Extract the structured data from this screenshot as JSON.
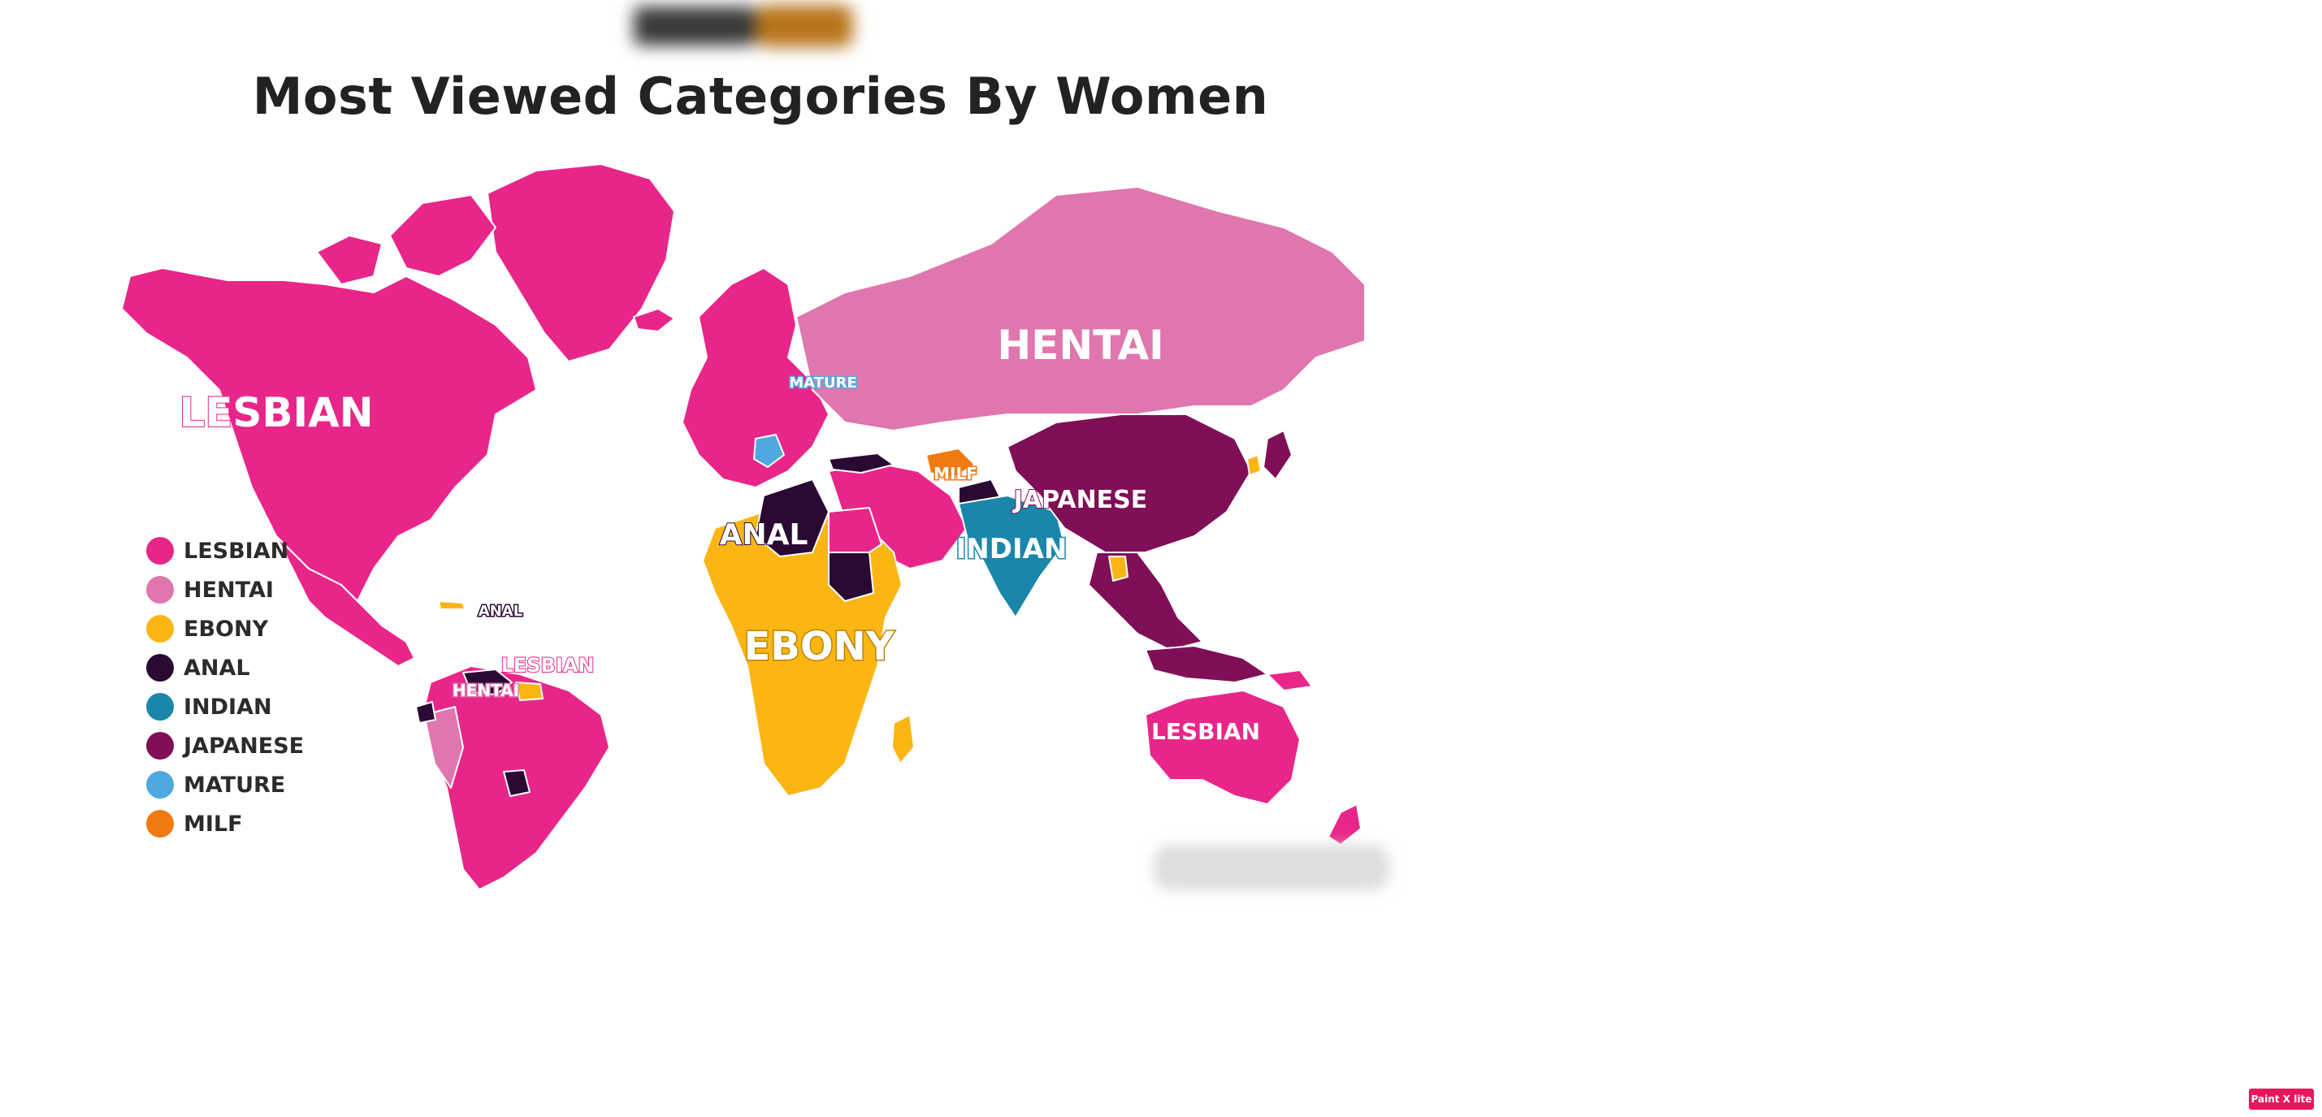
{
  "title": "Most Viewed Categories By Women",
  "colors": {
    "lesbian": "#e8268a",
    "hentai": "#e076ae",
    "ebony": "#fbb613",
    "anal": "#2a0a33",
    "indian": "#1a86aa",
    "japanese": "#7f0f57",
    "mature": "#4fa8e0",
    "milf": "#f07a12"
  },
  "legend": [
    {
      "label": "LESBIAN",
      "color": "#e8268a"
    },
    {
      "label": "HENTAI",
      "color": "#e076ae"
    },
    {
      "label": "EBONY",
      "color": "#fbb613"
    },
    {
      "label": "ANAL",
      "color": "#2a0a33"
    },
    {
      "label": "INDIAN",
      "color": "#1a86aa"
    },
    {
      "label": "JAPANESE",
      "color": "#7f0f57"
    },
    {
      "label": "MATURE",
      "color": "#4fa8e0"
    },
    {
      "label": "MILF",
      "color": "#f07a12"
    }
  ],
  "map_labels": {
    "north_america": "LESBIAN",
    "russia": "HENTAI",
    "mature": "MATURE",
    "milf": "MILF",
    "japanese": "JAPANESE",
    "anal_africa": "ANAL",
    "indian": "INDIAN",
    "ebony": "EBONY",
    "anal_sa": "ANAL",
    "lesbian_sa": "LESBIAN",
    "hentai_sa": "HENTAI",
    "australia": "LESBIAN"
  },
  "badge": "Paint X lite"
}
